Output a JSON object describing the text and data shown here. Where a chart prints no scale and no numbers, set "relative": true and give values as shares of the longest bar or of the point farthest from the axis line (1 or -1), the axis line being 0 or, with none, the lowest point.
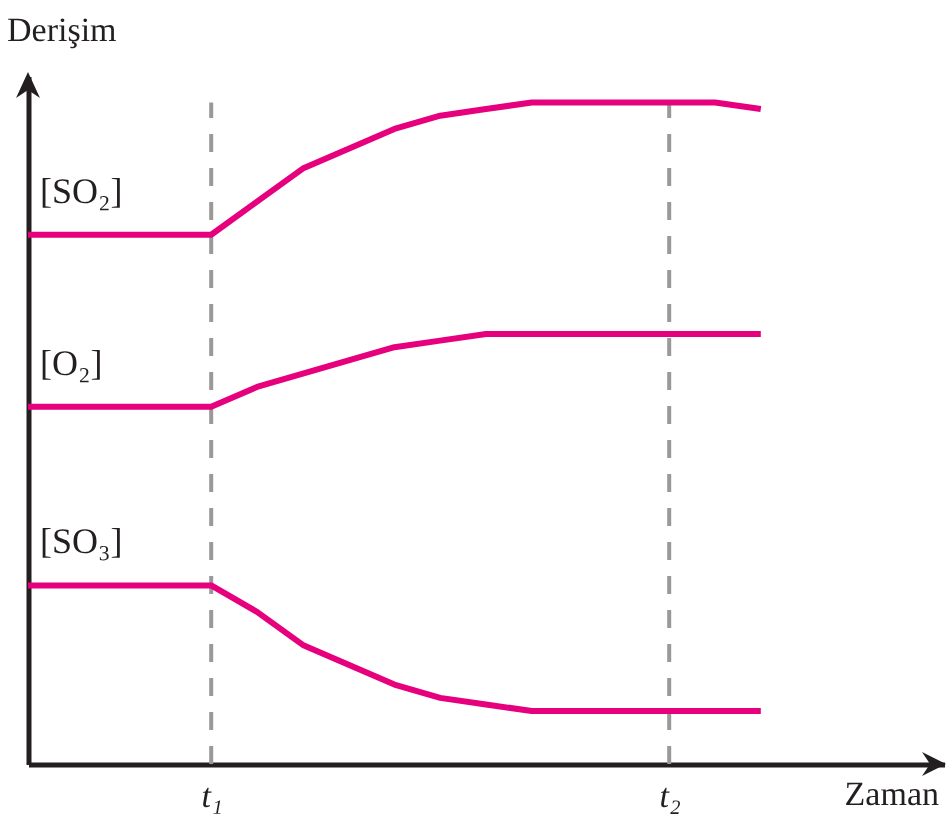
{
  "chart_data": {
    "type": "line",
    "xlabel": "Zaman",
    "ylabel": "Derişim",
    "relative": true,
    "categories": [
      null,
      null,
      null,
      null,
      "t₁",
      null,
      null,
      null,
      null,
      null,
      null,
      null,
      null,
      null,
      "t₂",
      null,
      null
    ],
    "series": [
      {
        "name": "[SO₂]",
        "color": "#e6007e",
        "values": [
          0.8,
          0.8,
          0.8,
          0.8,
          0.8,
          0.85,
          0.9,
          0.93,
          0.96,
          0.98,
          0.99,
          1,
          1,
          1,
          1,
          1,
          0.99
        ]
      },
      {
        "name": "[O₂]",
        "color": "#e6007e",
        "values": [
          0.54,
          0.54,
          0.54,
          0.54,
          0.54,
          0.57,
          0.59,
          0.61,
          0.63,
          0.64,
          0.65,
          0.65,
          0.65,
          0.65,
          0.65,
          0.65,
          0.65
        ]
      },
      {
        "name": "[SO₃]",
        "color": "#e6007e",
        "values": [
          0.27,
          0.27,
          0.27,
          0.27,
          0.27,
          0.23,
          0.18,
          0.15,
          0.12,
          0.1,
          0.09,
          0.08,
          0.08,
          0.08,
          0.08,
          0.08,
          0.08
        ]
      }
    ],
    "ref_lines": [
      {
        "axis": "x",
        "value": "t₁",
        "color": "#999999",
        "line_style": "dashed"
      },
      {
        "axis": "x",
        "value": "t₂",
        "color": "#999999",
        "line_style": "dashed"
      }
    ]
  }
}
